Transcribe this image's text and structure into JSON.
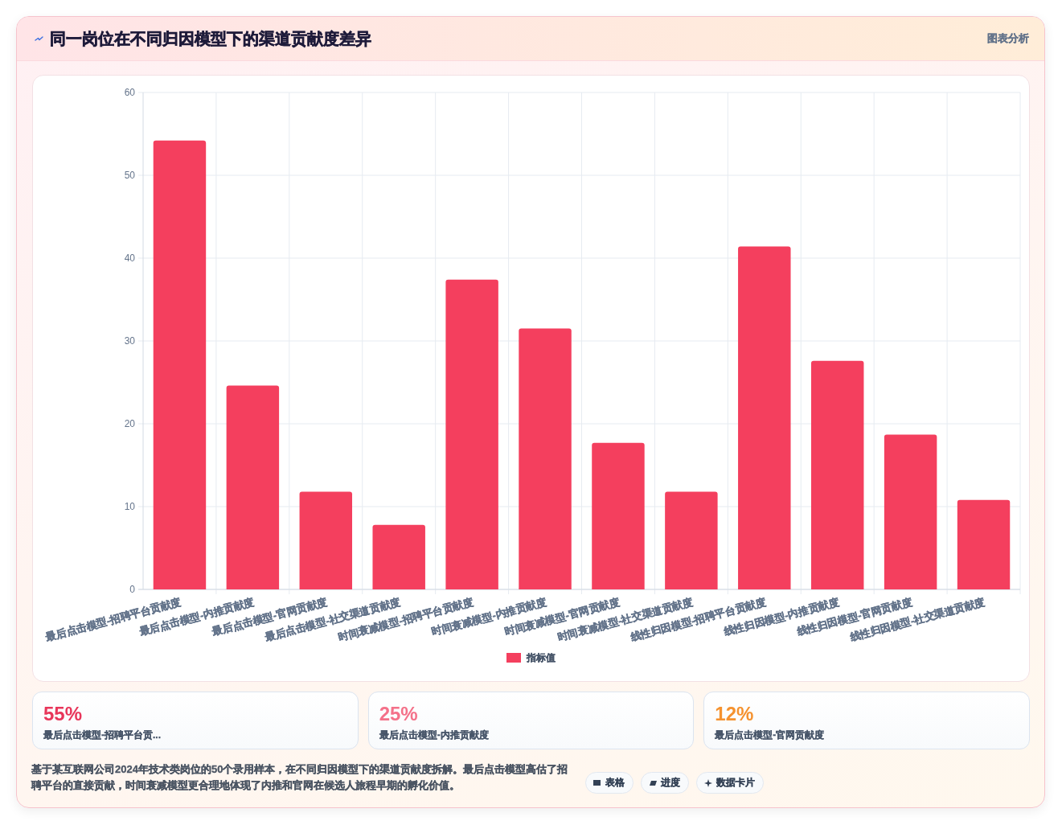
{
  "chart_data": [
    {
      "type": "bar",
      "title": "同一岗位在不同归因模型下的渠道贡献度差异",
      "categories": [
        "最后点击模型-招聘平台贡献度",
        "最后点击模型-内推贡献度",
        "最后点击模型-官网贡献度",
        "最后点击模型-社交渠道贡献度",
        "时间衰减模型-招聘平台贡献度",
        "时间衰减模型-内推贡献度",
        "时间衰减模型-官网贡献度",
        "时间衰减模型-社交渠道贡献度",
        "线性归因模型-招聘平台贡献度",
        "线性归因模型-内推贡献度",
        "线性归因模型-官网贡献度",
        "线性归因模型-社交渠道贡献度"
      ],
      "series": [
        {
          "name": "指标值",
          "color": "#f43f5e",
          "values": [
            54.2,
            24.6,
            11.8,
            7.8,
            37.4,
            31.5,
            17.7,
            11.8,
            41.4,
            27.6,
            18.7,
            10.8
          ]
        }
      ],
      "ylim": [
        0,
        60
      ],
      "yticks": [
        0,
        10,
        20,
        30,
        40,
        50,
        60
      ],
      "grid": true,
      "legend": "bottom",
      "annotations": [
        "图表分析"
      ]
    },
    {
      "type": "other",
      "categories": [
        "最后点击模型-招聘平台贡...",
        "最后点击模型-内推贡献度",
        "最后点击模型-官网贡献度"
      ],
      "value_labels": [
        "55%",
        "25%",
        "12%"
      ],
      "annotations": [
        "基于某互联网公司2024年技术类岗位的50个录用样本，在不同归因模型下的渠道贡献度拆解。最后点击模型高估了招聘平台的直接贡献，时间衰减模型更合理地体现了内推和官网在候选人旅程早期的孵化价值。",
        "表格",
        "进度",
        "数据卡片"
      ]
    }
  ]
}
